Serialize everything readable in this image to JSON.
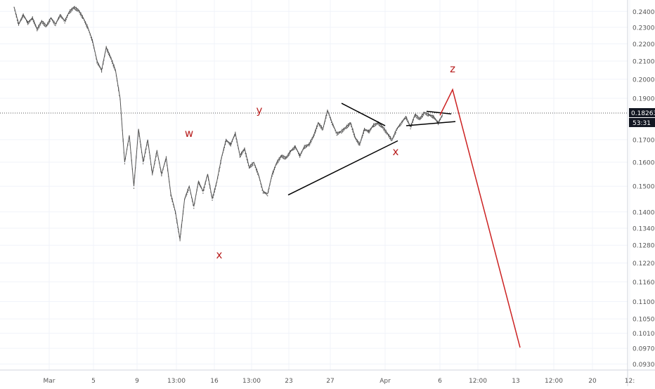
{
  "chart_data": {
    "type": "line",
    "title": "",
    "xlabel": "",
    "ylabel": "",
    "y_scale": "log",
    "ylim": [
      0.0915,
      0.2475
    ],
    "grid": true,
    "x_ticks": [
      "Mar",
      "5",
      "9",
      "13:00",
      "16",
      "13:00",
      "23",
      "27",
      "Apr",
      "6",
      "12:00",
      "13",
      "12:00",
      "20",
      "12:"
    ],
    "y_ticks": [
      "0.24000",
      "0.23000",
      "0.22000",
      "0.21000",
      "0.20000",
      "0.19000",
      "0.18263",
      "0.17000",
      "0.16000",
      "0.15000",
      "0.14000",
      "0.13400",
      "0.12800",
      "0.12200",
      "0.11600",
      "0.11000",
      "0.10500",
      "0.10100",
      "0.09700",
      "0.09300"
    ],
    "current_price": {
      "label": "0.18263",
      "value": 0.18263,
      "countdown": "53:31"
    },
    "series": [
      {
        "values": [
          0.243,
          0.232,
          0.238,
          0.233,
          0.236,
          0.229,
          0.234,
          0.231,
          0.236,
          0.232,
          0.238,
          0.234,
          0.24,
          0.243,
          0.241,
          0.236,
          0.23,
          0.222,
          0.21,
          0.205,
          0.218,
          0.212,
          0.205,
          0.19,
          0.16,
          0.172,
          0.15,
          0.175,
          0.16,
          0.17,
          0.155,
          0.165,
          0.155,
          0.162,
          0.147,
          0.14,
          0.13,
          0.145,
          0.15,
          0.142,
          0.152,
          0.148,
          0.155,
          0.145,
          0.152,
          0.162,
          0.17,
          0.168,
          0.173,
          0.163,
          0.166,
          0.158,
          0.16,
          0.155,
          0.148,
          0.147,
          0.155,
          0.16,
          0.163,
          0.162,
          0.165,
          0.167,
          0.163,
          0.167,
          0.168,
          0.172,
          0.178,
          0.175,
          0.184,
          0.178,
          0.173,
          0.174,
          0.176,
          0.178,
          0.171,
          0.168,
          0.175,
          0.174,
          0.177,
          0.178,
          0.176,
          0.173,
          0.17,
          0.175,
          0.178,
          0.181,
          0.176,
          0.182,
          0.18,
          0.183,
          0.182,
          0.181,
          0.178,
          0.182
        ]
      }
    ],
    "annotations": {
      "labels": [
        {
          "text": "w"
        },
        {
          "text": "x"
        },
        {
          "text": "y"
        },
        {
          "text": "x"
        },
        {
          "text": "z"
        }
      ],
      "projection_color": "#cc2222",
      "trendline_color": "#000000"
    },
    "colors": {
      "price": "#555555",
      "annotation_red": "#b71c1c",
      "price_badge": "#131722",
      "grid": "#f0f3fa",
      "axis_text": "#555555"
    }
  }
}
